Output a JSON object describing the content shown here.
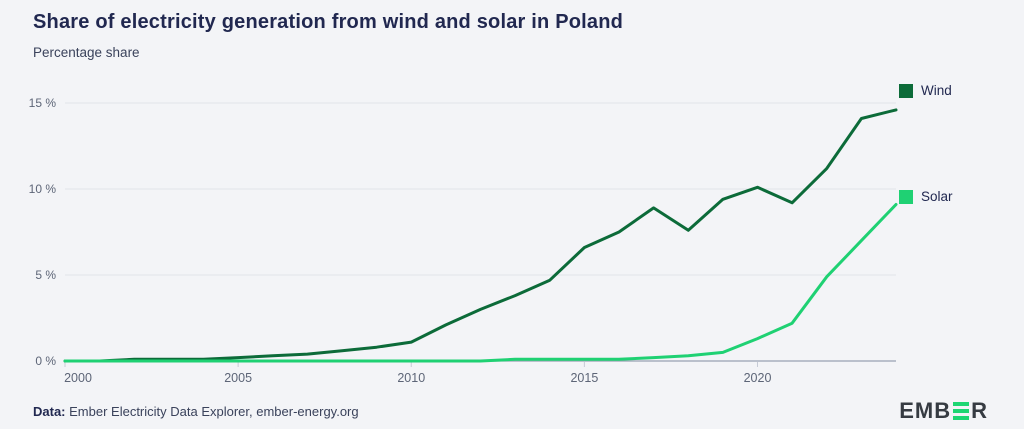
{
  "header": {
    "title": "Share of electricity generation from wind and solar in Poland",
    "subtitle": "Percentage share"
  },
  "legend": {
    "wind": {
      "label": "Wind",
      "color": "#0c6b39"
    },
    "solar": {
      "label": "Solar",
      "color": "#1fd173"
    }
  },
  "footer": {
    "data_label": "Data:",
    "source_text": " Ember Electricity Data Explorer, ember-energy.org",
    "logo": {
      "left": "EMB",
      "right": "R",
      "bars_icon": "ember-logo-bars",
      "bar_color": "#1ed673"
    }
  },
  "colors": {
    "background": "#f3f4f7",
    "title": "#212850",
    "axis_text": "#5d6577",
    "gridline": "#e2e4ea",
    "axis_line": "#98a1b3",
    "tick_mark": "#c6cbd6",
    "wind": "#0c6b39",
    "solar": "#1fd173"
  },
  "chart_data": {
    "type": "line",
    "title": "Share of electricity generation from wind and solar in Poland",
    "xlabel": "",
    "ylabel": "Percentage share",
    "x": [
      2000,
      2001,
      2002,
      2003,
      2004,
      2005,
      2006,
      2007,
      2008,
      2009,
      2010,
      2011,
      2012,
      2013,
      2014,
      2015,
      2016,
      2017,
      2018,
      2019,
      2020,
      2021,
      2022,
      2023,
      2024
    ],
    "series": [
      {
        "name": "Wind",
        "color": "#0c6b39",
        "values": [
          0.0,
          0.0,
          0.1,
          0.1,
          0.1,
          0.2,
          0.3,
          0.4,
          0.6,
          0.8,
          1.1,
          2.1,
          3.0,
          3.8,
          4.7,
          6.6,
          7.5,
          8.9,
          7.6,
          9.4,
          10.1,
          9.2,
          11.2,
          14.1,
          14.6
        ]
      },
      {
        "name": "Solar",
        "color": "#1fd173",
        "values": [
          0.0,
          0.0,
          0.0,
          0.0,
          0.0,
          0.0,
          0.0,
          0.0,
          0.0,
          0.0,
          0.0,
          0.0,
          0.0,
          0.1,
          0.1,
          0.1,
          0.1,
          0.2,
          0.3,
          0.5,
          1.3,
          2.2,
          4.9,
          7.0,
          9.1
        ]
      }
    ],
    "xlim": [
      2000,
      2024
    ],
    "ylim": [
      0,
      15.5
    ],
    "yticks": [
      {
        "value": 0,
        "label": "0 %"
      },
      {
        "value": 5,
        "label": "5 %"
      },
      {
        "value": 10,
        "label": "10 %"
      },
      {
        "value": 15,
        "label": "15 %"
      }
    ],
    "xticks": [
      {
        "value": 2000,
        "label": "2000"
      },
      {
        "value": 2005,
        "label": "2005"
      },
      {
        "value": 2010,
        "label": "2010"
      },
      {
        "value": 2015,
        "label": "2015"
      },
      {
        "value": 2020,
        "label": "2020"
      }
    ],
    "grid": "horizontal",
    "legend_position": "right-of-line-ends"
  }
}
